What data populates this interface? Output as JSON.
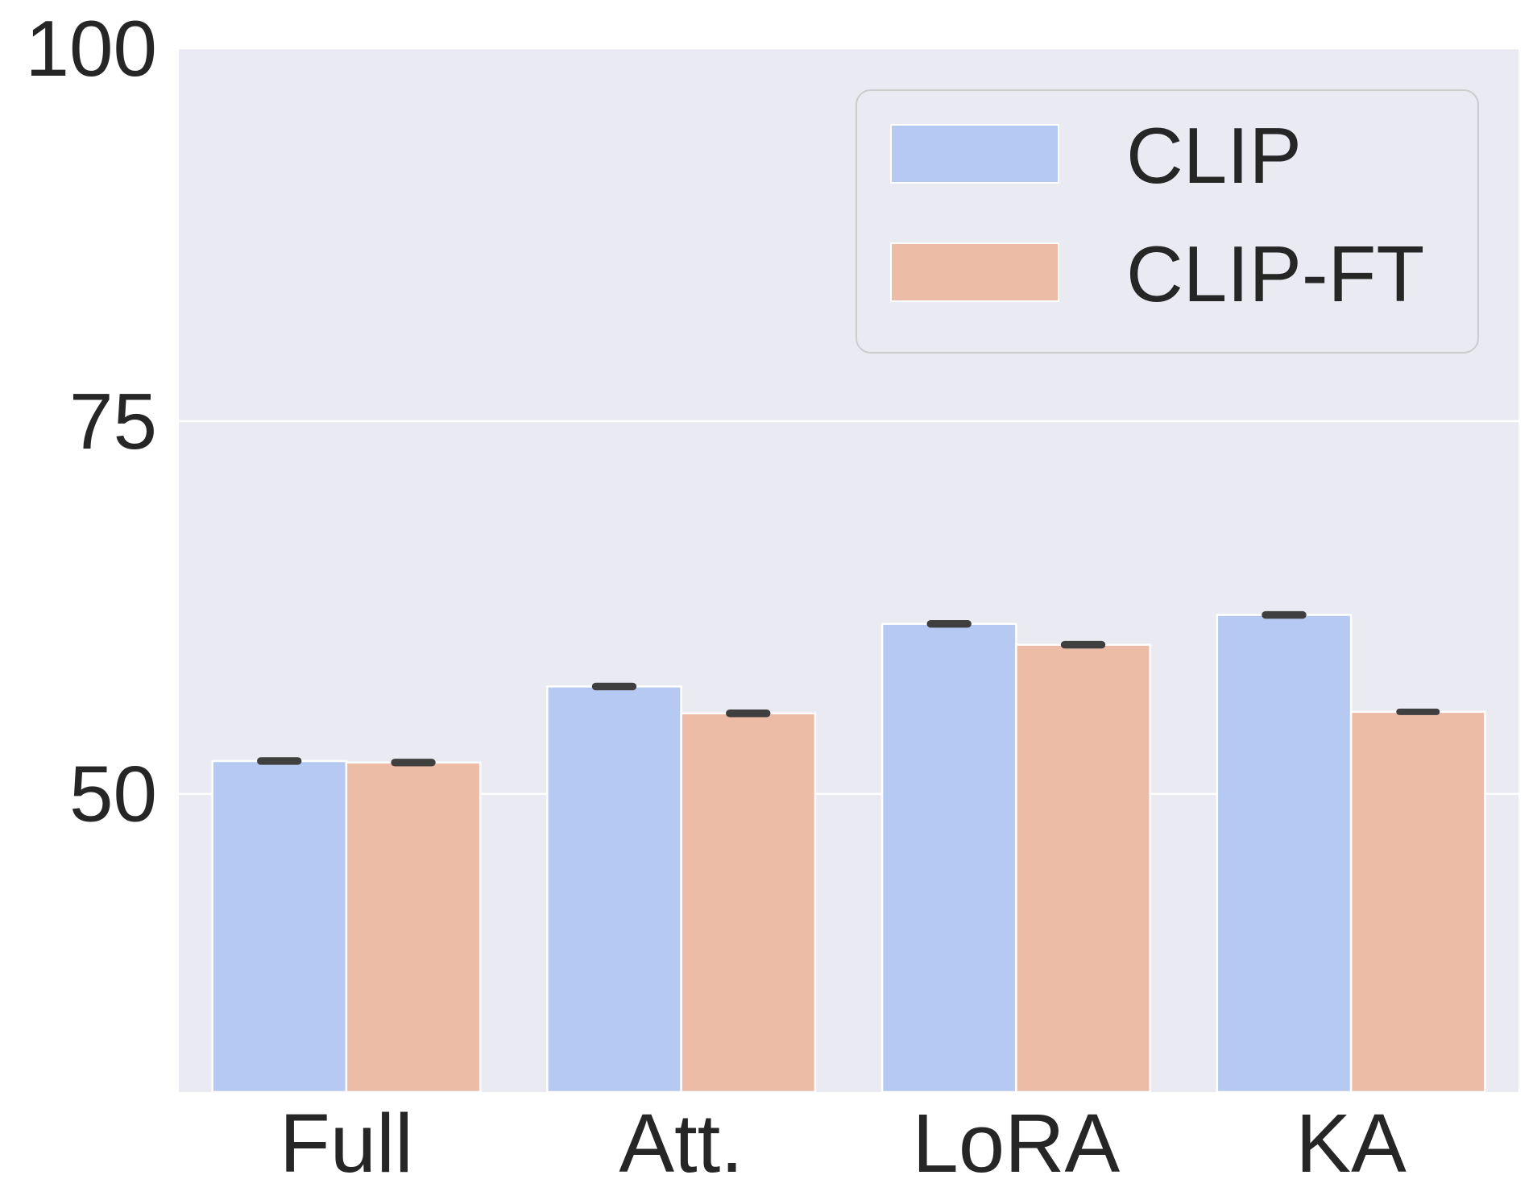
{
  "chart_data": {
    "type": "bar",
    "title": "",
    "xlabel": "",
    "ylabel": "",
    "categories": [
      "Full",
      "Att.",
      "LoRA",
      "KA"
    ],
    "series": [
      {
        "name": "CLIP",
        "values": [
          52.2,
          57.2,
          61.4,
          62.0
        ],
        "errors": [
          0.2,
          0.2,
          0.2,
          0.2
        ]
      },
      {
        "name": "CLIP-FT",
        "values": [
          52.1,
          55.4,
          60.0,
          55.5
        ],
        "errors": [
          0.2,
          0.2,
          0.2,
          0.15
        ]
      }
    ],
    "ylim": [
      30,
      100
    ],
    "yticks": [
      50,
      75,
      100
    ],
    "grid": true,
    "legend_position": "top-right",
    "colors": {
      "background": "#eaeaf2",
      "grid": "#ffffff",
      "series": [
        "#b5c9f2",
        "#ecbca7"
      ],
      "error_bar": "#3f3f3f",
      "legend_border": "#cccccc"
    }
  }
}
